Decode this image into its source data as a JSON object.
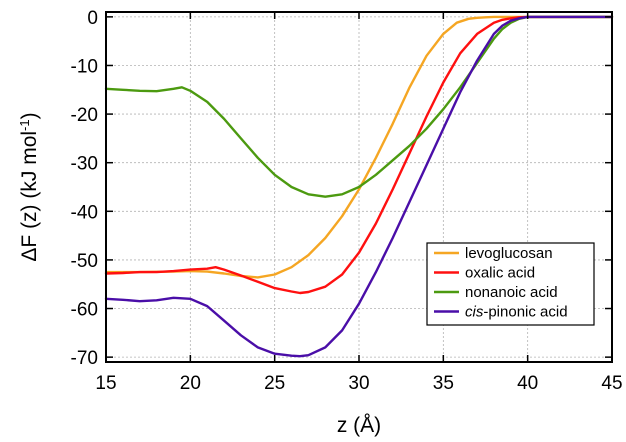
{
  "chart_data": {
    "type": "line",
    "xlabel": "z (Å)",
    "ylabel": "ΔF (z) (kJ mol",
    "ylabel_superscript": "-1",
    "ylabel_suffix": ")",
    "xlim": [
      15,
      45
    ],
    "ylim": [
      -71,
      1
    ],
    "x_ticks": [
      15,
      20,
      25,
      30,
      35,
      40,
      45
    ],
    "y_ticks": [
      0,
      -10,
      -20,
      -30,
      -40,
      -50,
      -60,
      -70
    ],
    "grid": true,
    "legend_position": "bottom-right",
    "series": [
      {
        "name": "levoglucosan",
        "color": "#f5a623",
        "x": [
          15,
          17,
          19,
          20,
          21,
          22,
          23,
          24,
          25,
          26,
          27,
          28,
          29,
          30,
          31,
          32,
          33,
          34,
          35,
          35.8,
          36.5,
          37,
          37.5,
          38,
          39,
          40,
          42,
          45
        ],
        "y": [
          -52.5,
          -52.5,
          -52.4,
          -52.3,
          -52.4,
          -52.8,
          -53.3,
          -53.6,
          -53.0,
          -51.5,
          -49.0,
          -45.5,
          -41.0,
          -35.5,
          -29.0,
          -22.0,
          -14.5,
          -8.0,
          -3.5,
          -1.2,
          -0.4,
          -0.2,
          -0.1,
          0,
          0,
          0,
          0,
          0
        ]
      },
      {
        "name": "oxalic acid",
        "color": "#ff1010",
        "x": [
          15,
          16,
          17,
          18,
          19,
          20,
          21,
          21.5,
          22,
          23,
          24,
          25,
          26,
          26.5,
          27,
          28,
          29,
          30,
          31,
          32,
          33,
          34,
          35,
          36,
          37,
          38,
          38.5,
          39,
          39.5,
          40,
          42,
          45
        ],
        "y": [
          -52.8,
          -52.7,
          -52.5,
          -52.5,
          -52.3,
          -52.0,
          -51.8,
          -51.5,
          -52.0,
          -53.2,
          -54.5,
          -55.8,
          -56.5,
          -56.8,
          -56.6,
          -55.5,
          -53.0,
          -48.5,
          -42.5,
          -35.5,
          -28.0,
          -20.5,
          -13.5,
          -7.5,
          -3.5,
          -1.2,
          -0.6,
          -0.3,
          -0.1,
          0,
          0,
          0
        ]
      },
      {
        "name": "nonanoic acid",
        "color": "#4c9a10",
        "x": [
          15,
          16,
          17,
          18,
          19,
          19.5,
          20,
          21,
          22,
          23,
          24,
          25,
          26,
          27,
          28,
          29,
          30,
          31,
          32,
          33,
          34,
          35,
          36,
          37,
          38,
          38.5,
          39,
          39.5,
          40,
          42,
          45
        ],
        "y": [
          -14.8,
          -15.0,
          -15.2,
          -15.3,
          -14.8,
          -14.5,
          -15.2,
          -17.5,
          -21.0,
          -25.0,
          -29.0,
          -32.5,
          -35.0,
          -36.5,
          -37.0,
          -36.5,
          -35.0,
          -32.5,
          -29.5,
          -26.5,
          -23.0,
          -19.0,
          -14.5,
          -9.5,
          -4.5,
          -2.5,
          -1.2,
          -0.4,
          0,
          0,
          0
        ]
      },
      {
        "name": "cis-pinonic acid",
        "name_italic": "cis",
        "name_rest": "-pinonic acid",
        "color": "#4a0ea8",
        "x": [
          15,
          16,
          17,
          18,
          19,
          20,
          21,
          22,
          23,
          24,
          25,
          26,
          26.5,
          27,
          28,
          29,
          30,
          31,
          32,
          33,
          34,
          35,
          36,
          37,
          38,
          38.5,
          39,
          39.5,
          40,
          42,
          45
        ],
        "y": [
          -58.0,
          -58.2,
          -58.5,
          -58.3,
          -57.8,
          -58.0,
          -59.5,
          -62.5,
          -65.5,
          -68.0,
          -69.3,
          -69.7,
          -69.8,
          -69.6,
          -68.0,
          -64.5,
          -59.0,
          -52.5,
          -45.5,
          -38.0,
          -30.5,
          -23.0,
          -15.5,
          -9.0,
          -3.5,
          -1.8,
          -0.8,
          -0.3,
          0,
          0,
          0
        ]
      }
    ]
  }
}
